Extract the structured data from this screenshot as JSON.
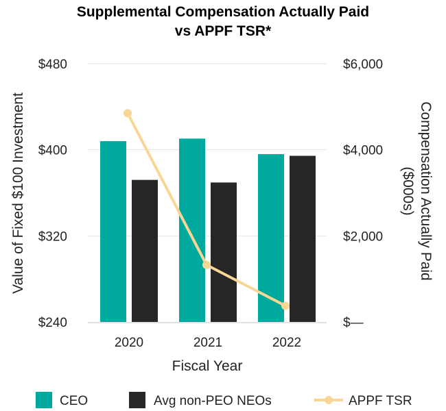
{
  "chart_data": {
    "type": "bar",
    "title_lines": [
      "Supplemental Compensation Actually Paid",
      "vs APPF TSR*"
    ],
    "xlabel": "Fiscal Year",
    "ylabel_left": "Value of Fixed $100 Investment",
    "ylabel_right_lines": [
      "Compensation Actually Paid",
      "($000s)"
    ],
    "categories": [
      "2020",
      "2021",
      "2022"
    ],
    "left_axis": {
      "min": 240,
      "max": 480,
      "ticks": [
        240,
        320,
        400,
        480
      ],
      "tick_labels": [
        "$240",
        "$320",
        "$400",
        "$480"
      ]
    },
    "right_axis": {
      "min": 0,
      "max": 6000,
      "ticks": [
        0,
        2000,
        4000,
        6000
      ],
      "tick_labels": [
        "$—",
        "$2,000",
        "$4,000",
        "$6,000"
      ]
    },
    "series": [
      {
        "name": "CEO",
        "type": "bar",
        "axis": "right",
        "color": "#00A99D",
        "values": [
          4200,
          4260,
          3900
        ]
      },
      {
        "name": "Avg non-PEO NEOs",
        "type": "bar",
        "axis": "right",
        "color": "#262626",
        "values": [
          3300,
          3240,
          3860
        ]
      },
      {
        "name": "APPF TSR",
        "type": "line",
        "axis": "left",
        "color": "#F8D796",
        "values": [
          434,
          293,
          255
        ]
      }
    ],
    "legend_position": "bottom",
    "grid": true
  }
}
